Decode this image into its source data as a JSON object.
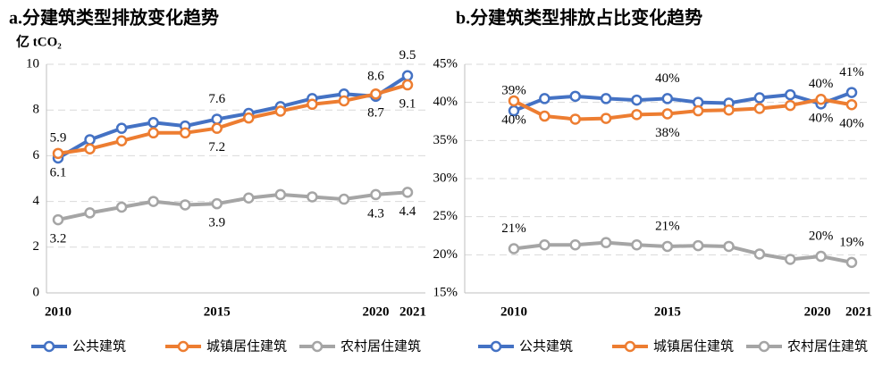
{
  "chart_data": [
    {
      "type": "line",
      "title": "a.分建筑类型排放变化趋势",
      "y_label": "亿 tCO₂",
      "x": [
        2010,
        2011,
        2012,
        2013,
        2014,
        2015,
        2016,
        2017,
        2018,
        2019,
        2020,
        2021
      ],
      "xlim": [
        2010,
        2021
      ],
      "xticks": [
        2010,
        2015,
        2020,
        2021
      ],
      "ylim": [
        0,
        10
      ],
      "yticks": [
        0,
        2,
        4,
        6,
        8,
        10
      ],
      "grid": true,
      "legend": "bottom",
      "series": [
        {
          "name": "公共建筑",
          "color": "#4472c4",
          "values": [
            5.9,
            6.7,
            7.2,
            7.45,
            7.3,
            7.6,
            7.85,
            8.15,
            8.5,
            8.7,
            8.6,
            9.5
          ],
          "value_labels": [
            "5.9",
            null,
            null,
            null,
            null,
            "7.6",
            null,
            null,
            null,
            null,
            "8.6",
            "9.5"
          ]
        },
        {
          "name": "城镇居住建筑",
          "color": "#ed7d31",
          "values": [
            6.1,
            6.3,
            6.65,
            7.0,
            7.0,
            7.2,
            7.65,
            7.95,
            8.25,
            8.4,
            8.7,
            9.1
          ],
          "value_labels": [
            "6.1",
            null,
            null,
            null,
            null,
            "7.2",
            null,
            null,
            null,
            null,
            "8.7",
            "9.1"
          ]
        },
        {
          "name": "农村居住建筑",
          "color": "#a5a5a5",
          "values": [
            3.2,
            3.5,
            3.75,
            4.0,
            3.85,
            3.9,
            4.15,
            4.3,
            4.2,
            4.1,
            4.3,
            4.4
          ],
          "value_labels": [
            "3.2",
            null,
            null,
            null,
            null,
            "3.9",
            null,
            null,
            null,
            null,
            "4.3",
            "4.4"
          ]
        }
      ]
    },
    {
      "type": "line",
      "title": "b.分建筑类型排放占比变化趋势",
      "x": [
        2010,
        2011,
        2012,
        2013,
        2014,
        2015,
        2016,
        2017,
        2018,
        2019,
        2020,
        2021
      ],
      "xlim": [
        2010,
        2021
      ],
      "xticks": [
        2010,
        2015,
        2020,
        2021
      ],
      "ylim": [
        15,
        45
      ],
      "yticks": [
        {
          "value": 15,
          "label": "15%"
        },
        {
          "value": 20,
          "label": "20%"
        },
        {
          "value": 25,
          "label": "25%"
        },
        {
          "value": 30,
          "label": "30%"
        },
        {
          "value": 35,
          "label": "35%"
        },
        {
          "value": 40,
          "label": "40%"
        },
        {
          "value": 45,
          "label": "45%"
        }
      ],
      "grid": true,
      "legend": "bottom",
      "series": [
        {
          "name": "公共建筑",
          "color": "#4472c4",
          "values": [
            38.9,
            40.5,
            40.8,
            40.5,
            40.3,
            40.5,
            40.0,
            39.9,
            40.6,
            41.0,
            39.8,
            41.3
          ],
          "value_labels": [
            "39%",
            null,
            null,
            null,
            null,
            "40%",
            null,
            null,
            null,
            null,
            "40%",
            "41%"
          ]
        },
        {
          "name": "城镇居住建筑",
          "color": "#ed7d31",
          "values": [
            40.2,
            38.2,
            37.8,
            37.9,
            38.4,
            38.5,
            38.9,
            39.0,
            39.2,
            39.6,
            40.4,
            39.7
          ],
          "value_labels": [
            "40%",
            null,
            null,
            null,
            null,
            "38%",
            null,
            null,
            null,
            null,
            "40%",
            "40%"
          ]
        },
        {
          "name": "农村居住建筑",
          "color": "#a5a5a5",
          "values": [
            20.8,
            21.3,
            21.3,
            21.6,
            21.3,
            21.1,
            21.2,
            21.1,
            20.1,
            19.4,
            19.8,
            19.0
          ],
          "value_labels": [
            "21%",
            null,
            null,
            null,
            null,
            "21%",
            null,
            null,
            null,
            null,
            "20%",
            "19%"
          ]
        }
      ]
    }
  ]
}
